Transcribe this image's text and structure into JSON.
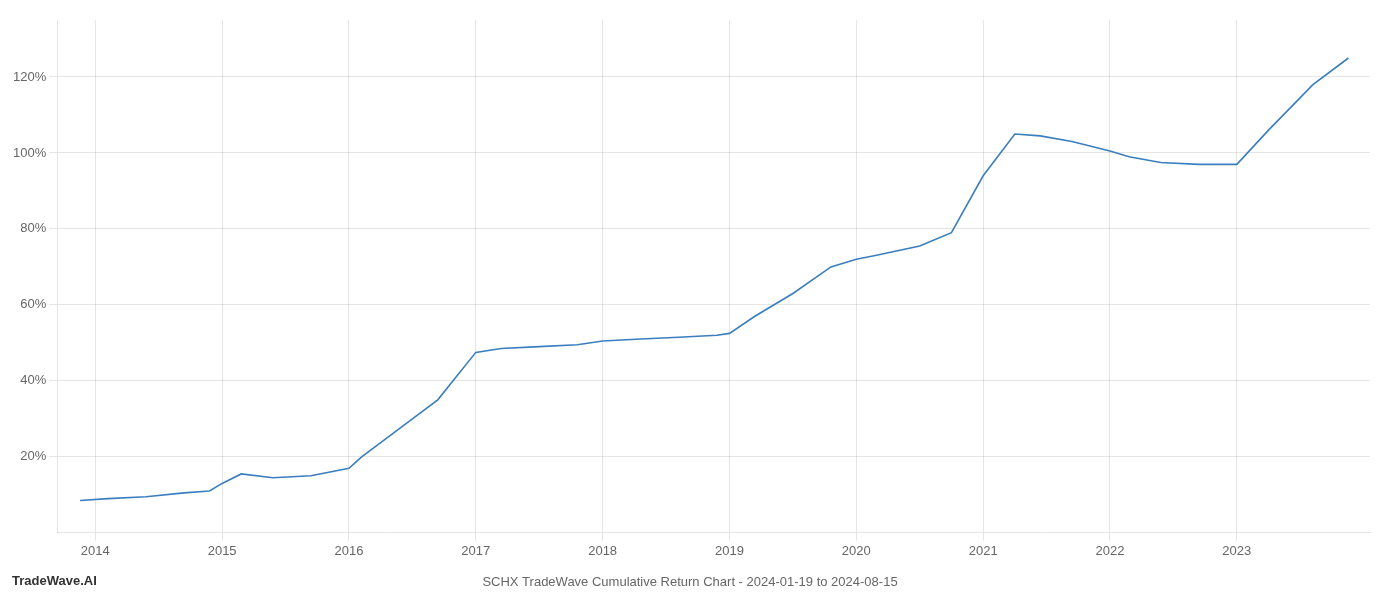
{
  "chart_data": {
    "type": "line",
    "title": "SCHX TradeWave Cumulative Return Chart - 2024-01-19 to 2024-08-15",
    "annotations": [
      "TradeWave.AI"
    ],
    "color": "#3a7ebf",
    "x": [
      2013.88,
      2014.1,
      2014.4,
      2014.7,
      2014.9,
      2015.0,
      2015.15,
      2015.4,
      2015.7,
      2016.0,
      2016.1,
      2016.3,
      2016.5,
      2016.7,
      2017.0,
      2017.2,
      2017.5,
      2017.8,
      2018.0,
      2018.3,
      2018.6,
      2018.9,
      2019.0,
      2019.2,
      2019.5,
      2019.8,
      2020.0,
      2020.15,
      2020.5,
      2020.75,
      2021.0,
      2021.25,
      2021.45,
      2021.7,
      2022.0,
      2022.15,
      2022.4,
      2022.7,
      2023.0,
      2023.25,
      2023.6,
      2023.88
    ],
    "values": [
      8.5,
      9.0,
      9.5,
      10.5,
      11.0,
      13.0,
      15.5,
      14.5,
      15.0,
      17.0,
      20.0,
      25.0,
      30.0,
      35.0,
      47.5,
      48.5,
      49.0,
      49.5,
      50.5,
      51.0,
      51.5,
      52.0,
      52.5,
      57.0,
      63.0,
      70.0,
      72.0,
      73.0,
      75.5,
      79.0,
      94.0,
      105.0,
      104.5,
      103.0,
      100.5,
      99.0,
      97.5,
      97.0,
      97.0,
      106.0,
      118.0,
      125.0
    ],
    "xlim": [
      2013.7,
      2024.05
    ],
    "xticks": [
      2014,
      2015,
      2016,
      2017,
      2018,
      2019,
      2020,
      2021,
      2022,
      2023
    ],
    "ylim": [
      0,
      135
    ],
    "yticks": [
      {
        "value": 20,
        "label": "20%"
      },
      {
        "value": 40,
        "label": "40%"
      },
      {
        "value": 60,
        "label": "60%"
      },
      {
        "value": 80,
        "label": "80%"
      },
      {
        "value": 100,
        "label": "100%"
      },
      {
        "value": 120,
        "label": "120%"
      }
    ],
    "grid": true
  }
}
